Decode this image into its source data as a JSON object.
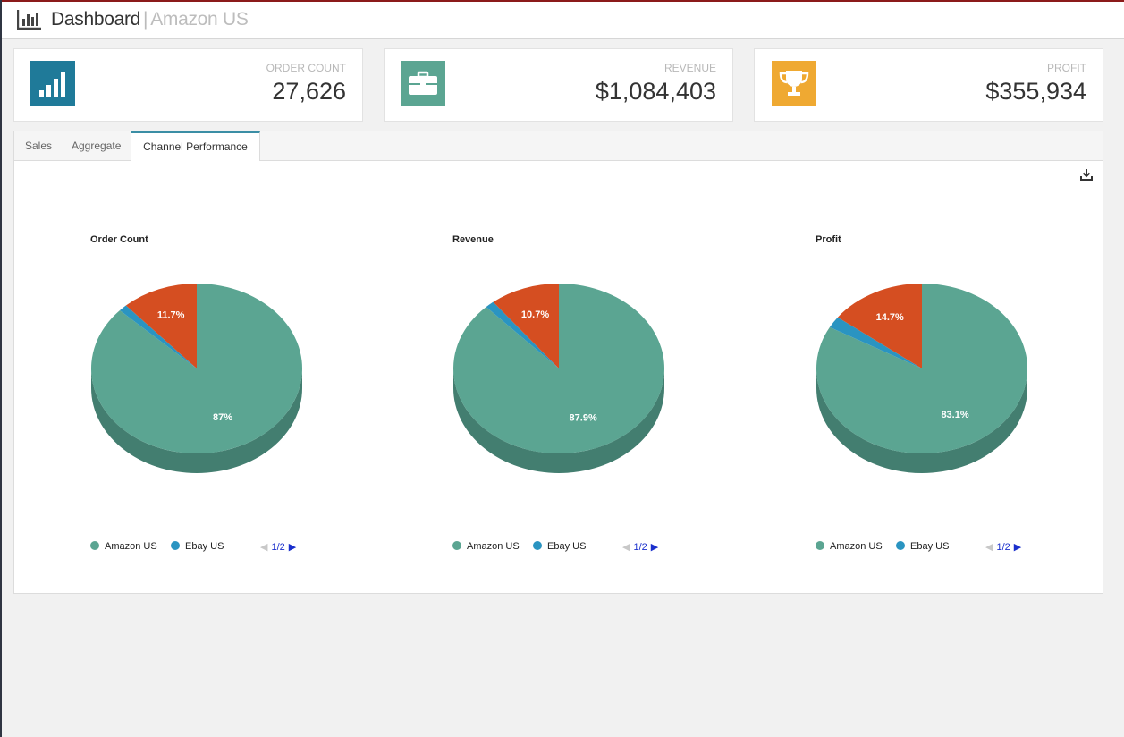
{
  "header": {
    "title": "Dashboard",
    "separator": "|",
    "subtitle": "Amazon US"
  },
  "kpis": [
    {
      "label": "ORDER COUNT",
      "value": "27,626",
      "color": "#1f7a99",
      "icon": "bar-chart-icon"
    },
    {
      "label": "REVENUE",
      "value": "$1,084,403",
      "color": "#5ba592",
      "icon": "briefcase-icon"
    },
    {
      "label": "PROFIT",
      "value": "$355,934",
      "color": "#efa932",
      "icon": "trophy-icon"
    }
  ],
  "tabs": [
    {
      "label": "Sales",
      "active": false
    },
    {
      "label": "Aggregate",
      "active": false
    },
    {
      "label": "Channel Performance",
      "active": true
    }
  ],
  "colors": {
    "amazon": "#5ba592",
    "amazon_side": "#437e70",
    "ebay": "#2a94c1",
    "other": "#d54e21",
    "pager": "#1a2fcc"
  },
  "chart_data": [
    {
      "type": "pie",
      "title": "Order Count",
      "series": [
        {
          "name": "Amazon US",
          "value": 87
        },
        {
          "name": "Ebay US",
          "value": 1.3
        },
        {
          "name": "",
          "value": 11.7
        }
      ],
      "labels": [
        "87%",
        "",
        "11.7%"
      ],
      "legend": {
        "items": [
          "Amazon US",
          "Ebay US"
        ],
        "page": "1/2",
        "placement": "bottom"
      }
    },
    {
      "type": "pie",
      "title": "Revenue",
      "series": [
        {
          "name": "Amazon US",
          "value": 87.9
        },
        {
          "name": "Ebay US",
          "value": 1.4
        },
        {
          "name": "",
          "value": 10.7
        }
      ],
      "labels": [
        "87.9%",
        "",
        "10.7%"
      ],
      "legend": {
        "items": [
          "Amazon US",
          "Ebay US"
        ],
        "page": "1/2",
        "placement": "bottom"
      }
    },
    {
      "type": "pie",
      "title": "Profit",
      "series": [
        {
          "name": "Amazon US",
          "value": 83.1
        },
        {
          "name": "Ebay US",
          "value": 2.2
        },
        {
          "name": "",
          "value": 14.7
        }
      ],
      "labels": [
        "83.1%",
        "",
        "14.7%"
      ],
      "legend": {
        "items": [
          "Amazon US",
          "Ebay US"
        ],
        "page": "1/2",
        "placement": "bottom"
      }
    }
  ]
}
